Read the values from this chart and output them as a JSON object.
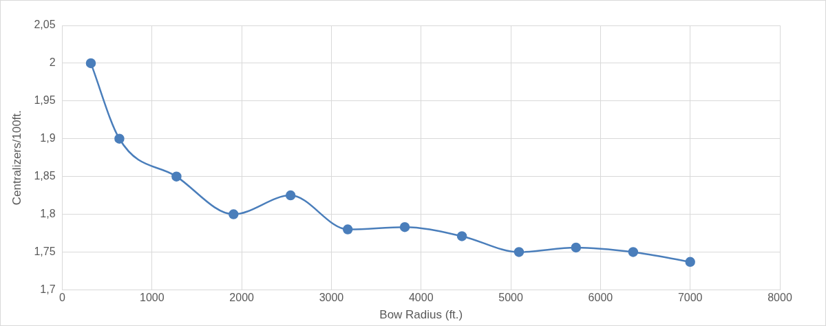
{
  "chart_data": {
    "type": "line",
    "xlabel": "Bow Radius (ft.)",
    "ylabel": "Centralizers/100ft.",
    "x": [
      318,
      636,
      1273,
      1909,
      2545,
      3182,
      3818,
      4455,
      5091,
      5727,
      6364,
      7000
    ],
    "series": [
      {
        "color": "#4a7ebb",
        "values": [
          2.0,
          1.9,
          1.85,
          1.8,
          1.825,
          1.78,
          1.783,
          1.771,
          1.75,
          1.756,
          1.75,
          1.737
        ]
      }
    ],
    "xlim": [
      0,
      8000
    ],
    "xticks": [
      0,
      1000,
      2000,
      3000,
      4000,
      5000,
      6000,
      7000,
      8000
    ],
    "ylim": [
      1.7,
      2.05
    ],
    "yticks": [
      {
        "value": 1.7,
        "label": "1,7"
      },
      {
        "value": 1.75,
        "label": "1,75"
      },
      {
        "value": 1.8,
        "label": "1,8"
      },
      {
        "value": 1.85,
        "label": "1,85"
      },
      {
        "value": 1.9,
        "label": "1,9"
      },
      {
        "value": 1.95,
        "label": "1,95"
      },
      {
        "value": 2.0,
        "label": "2"
      },
      {
        "value": 2.05,
        "label": "2,05"
      }
    ],
    "grid": true,
    "legend": false,
    "marker": "circle",
    "line_style": "solid"
  }
}
